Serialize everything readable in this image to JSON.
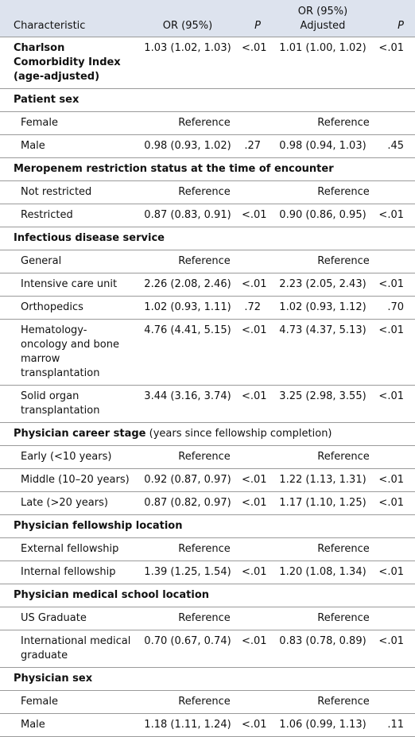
{
  "header": {
    "characteristic": "Characteristic",
    "or": "OR (95%)",
    "p": "P",
    "adjusted": [
      "OR (95%)",
      "Adjusted"
    ],
    "p_adjusted": "P"
  },
  "top": {
    "label": "Charlson Comorbidity Index (age-adjusted)",
    "or": "1.03 (1.02, 1.03)",
    "p": "<.01",
    "adjusted": "1.01 (1.00, 1.02)",
    "p_adjusted": "<.01"
  },
  "sections": [
    {
      "title": "Patient sex",
      "rows": [
        {
          "label": "Female",
          "or": "Reference",
          "adjusted": "Reference"
        },
        {
          "label": "Male",
          "or": "0.98 (0.93, 1.02)",
          "p": ".27",
          "adjusted": "0.98 (0.94, 1.03)",
          "p_adjusted": ".45"
        }
      ]
    },
    {
      "title": "Meropenem restriction status at the time of encounter",
      "rows": [
        {
          "label": "Not restricted",
          "or": "Reference",
          "adjusted": "Reference"
        },
        {
          "label": "Restricted",
          "or": "0.87 (0.83, 0.91)",
          "p": "<.01",
          "adjusted": "0.90 (0.86, 0.95)",
          "p_adjusted": "<.01"
        }
      ]
    },
    {
      "title": "Infectious disease service",
      "rows": [
        {
          "label": "General",
          "or": "Reference",
          "adjusted": "Reference"
        },
        {
          "label": "Intensive care unit",
          "or": "2.26 (2.08, 2.46)",
          "p": "<.01",
          "adjusted": "2.23 (2.05, 2.43)",
          "p_adjusted": "<.01"
        },
        {
          "label": "Orthopedics",
          "or": "1.02 (0.93, 1.11)",
          "p": ".72",
          "adjusted": "1.02 (0.93, 1.12)",
          "p_adjusted": ".70"
        },
        {
          "label": "Hematology-oncology and bone marrow transplantation",
          "or": "4.76 (4.41, 5.15)",
          "p": "<.01",
          "adjusted": "4.73 (4.37, 5.13)",
          "p_adjusted": "<.01"
        },
        {
          "label": "Solid organ transplantation",
          "or": "3.44 (3.16, 3.74)",
          "p": "<.01",
          "adjusted": "3.25 (2.98, 3.55)",
          "p_adjusted": "<.01"
        }
      ]
    },
    {
      "title": "Physician career stage",
      "note": "(years since fellowship completion)",
      "rows": [
        {
          "label": "Early (<10 years)",
          "or": "Reference",
          "adjusted": "Reference"
        },
        {
          "label": "Middle (10–20 years)",
          "or": "0.92 (0.87, 0.97)",
          "p": "<.01",
          "adjusted": "1.22 (1.13, 1.31)",
          "p_adjusted": "<.01"
        },
        {
          "label": "Late (>20 years)",
          "or": "0.87 (0.82, 0.97)",
          "p": "<.01",
          "adjusted": "1.17 (1.10, 1.25)",
          "p_adjusted": "<.01"
        }
      ]
    },
    {
      "title": "Physician fellowship location",
      "rows": [
        {
          "label": "External fellowship",
          "or": "Reference",
          "adjusted": "Reference"
        },
        {
          "label": "Internal fellowship",
          "or": "1.39 (1.25, 1.54)",
          "p": "<.01",
          "adjusted": "1.20 (1.08, 1.34)",
          "p_adjusted": "<.01"
        }
      ]
    },
    {
      "title": "Physician medical school location",
      "rows": [
        {
          "label": "US Graduate",
          "or": "Reference",
          "adjusted": "Reference"
        },
        {
          "label": "International medical graduate",
          "or": "0.70 (0.67, 0.74)",
          "p": "<.01",
          "adjusted": "0.83 (0.78, 0.89)",
          "p_adjusted": "<.01"
        }
      ]
    },
    {
      "title": "Physician sex",
      "rows": [
        {
          "label": "Female",
          "or": "Reference",
          "adjusted": "Reference"
        },
        {
          "label": "Male",
          "or": "1.18 (1.11, 1.24)",
          "p": "<.01",
          "adjusted": "1.06 (0.99, 1.13)",
          "p_adjusted": ".11"
        }
      ]
    }
  ]
}
